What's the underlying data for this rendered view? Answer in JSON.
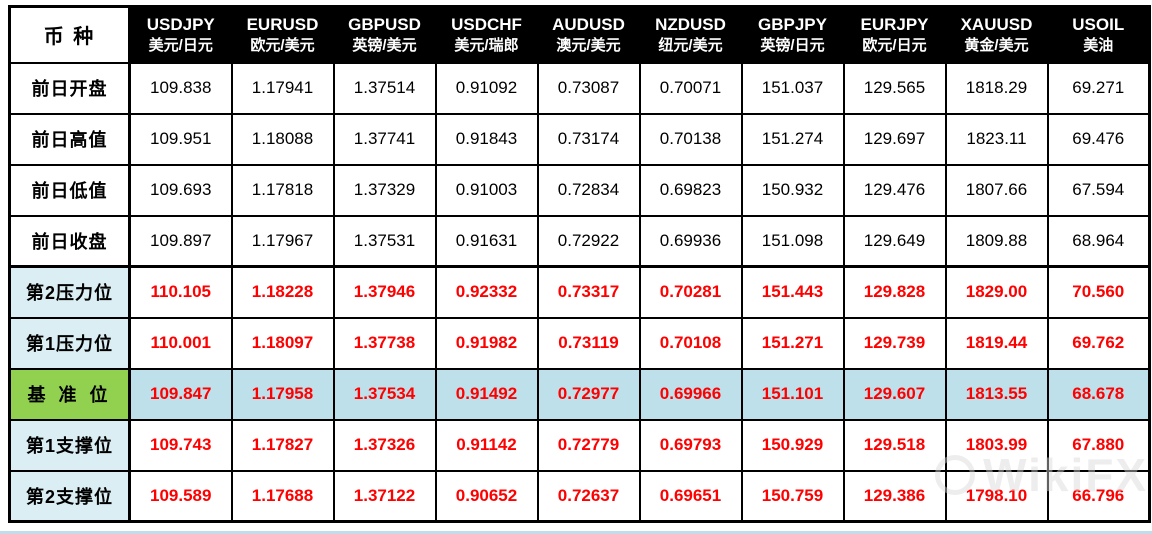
{
  "colors": {
    "header_bg": "#000000",
    "header_text": "#ffffff",
    "value_red": "#ff0000",
    "label_blue": "#daeef3",
    "pivot_row_blue": "#bee0ea",
    "pivot_label_green": "#92d050",
    "bottom_bar": "#c2dde9"
  },
  "watermark": {
    "text": "WikiFX"
  },
  "chart_data": {
    "type": "table",
    "corner_label": "币 种",
    "columns": [
      {
        "symbol": "USDJPY",
        "name_cn": "美元/日元"
      },
      {
        "symbol": "EURUSD",
        "name_cn": "欧元/美元"
      },
      {
        "symbol": "GBPUSD",
        "name_cn": "英镑/美元"
      },
      {
        "symbol": "USDCHF",
        "name_cn": "美元/瑞郎"
      },
      {
        "symbol": "AUDUSD",
        "name_cn": "澳元/美元"
      },
      {
        "symbol": "NZDUSD",
        "name_cn": "纽元/美元"
      },
      {
        "symbol": "GBPJPY",
        "name_cn": "英镑/日元"
      },
      {
        "symbol": "EURJPY",
        "name_cn": "欧元/日元"
      },
      {
        "symbol": "XAUUSD",
        "name_cn": "黄金/美元"
      },
      {
        "symbol": "USOIL",
        "name_cn": "美油"
      }
    ],
    "rows": [
      {
        "label": "前日开盘",
        "section": "prev_day",
        "style": "plain",
        "values": [
          "109.838",
          "1.17941",
          "1.37514",
          "0.91092",
          "0.73087",
          "0.70071",
          "151.037",
          "129.565",
          "1818.29",
          "69.271"
        ]
      },
      {
        "label": "前日高值",
        "section": "prev_day",
        "style": "plain",
        "values": [
          "109.951",
          "1.18088",
          "1.37741",
          "0.91843",
          "0.73174",
          "0.70138",
          "151.274",
          "129.697",
          "1823.11",
          "69.476"
        ]
      },
      {
        "label": "前日低值",
        "section": "prev_day",
        "style": "plain",
        "values": [
          "109.693",
          "1.17818",
          "1.37329",
          "0.91003",
          "0.72834",
          "0.69823",
          "150.932",
          "129.476",
          "1807.66",
          "67.594"
        ]
      },
      {
        "label": "前日收盘",
        "section": "prev_day",
        "style": "plain",
        "values": [
          "109.897",
          "1.17967",
          "1.37531",
          "0.91631",
          "0.72922",
          "0.69936",
          "151.098",
          "129.649",
          "1809.88",
          "68.964"
        ]
      },
      {
        "label": "第2压力位",
        "section": "levels",
        "style": "level",
        "values": [
          "110.105",
          "1.18228",
          "1.37946",
          "0.92332",
          "0.73317",
          "0.70281",
          "151.443",
          "129.828",
          "1829.00",
          "70.560"
        ]
      },
      {
        "label": "第1压力位",
        "section": "levels",
        "style": "level",
        "values": [
          "110.001",
          "1.18097",
          "1.37738",
          "0.91982",
          "0.73119",
          "0.70108",
          "151.271",
          "129.739",
          "1819.44",
          "69.762"
        ]
      },
      {
        "label": "基 准 位",
        "section": "levels",
        "style": "pivot",
        "values": [
          "109.847",
          "1.17958",
          "1.37534",
          "0.91492",
          "0.72977",
          "0.69966",
          "151.101",
          "129.607",
          "1813.55",
          "68.678"
        ]
      },
      {
        "label": "第1支撑位",
        "section": "levels",
        "style": "level",
        "values": [
          "109.743",
          "1.17827",
          "1.37326",
          "0.91142",
          "0.72779",
          "0.69793",
          "150.929",
          "129.518",
          "1803.99",
          "67.880"
        ]
      },
      {
        "label": "第2支撑位",
        "section": "levels",
        "style": "level",
        "values": [
          "109.589",
          "1.17688",
          "1.37122",
          "0.90652",
          "0.72637",
          "0.69651",
          "150.759",
          "129.386",
          "1798.10",
          "66.796"
        ]
      }
    ]
  }
}
